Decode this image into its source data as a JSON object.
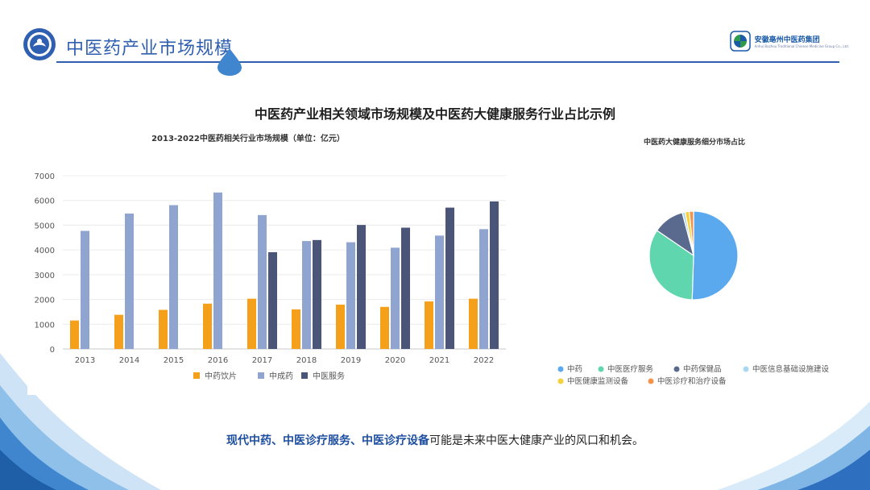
{
  "header": {
    "title": "中医药产业市场规模",
    "brand_name": "安徽亳州中医药集团",
    "brand_sub": "Anhui Bozhou Traditional Chinese Medicine Group Co., Ltd."
  },
  "main_heading": "中医药产业相关领域市场规模及中医药大健康服务行业占比示例",
  "chart_data": [
    {
      "type": "bar",
      "title": "2013-2022中医药相关行业市场规模（单位：亿元）",
      "categories": [
        "2013",
        "2014",
        "2015",
        "2016",
        "2017",
        "2018",
        "2019",
        "2020",
        "2021",
        "2022"
      ],
      "ylim": [
        0,
        7000
      ],
      "yticks": [
        0,
        1000,
        2000,
        3000,
        4000,
        5000,
        6000,
        7000
      ],
      "grid": true,
      "legend_position": "bottom",
      "series": [
        {
          "name": "中药饮片",
          "color": "#f5a01a",
          "values": [
            1150,
            1380,
            1580,
            1830,
            2030,
            1600,
            1790,
            1700,
            1920,
            2030
          ]
        },
        {
          "name": "中成药",
          "color": "#8fa5cf",
          "values": [
            4770,
            5470,
            5810,
            6320,
            5410,
            4360,
            4310,
            4090,
            4580,
            4840
          ]
        },
        {
          "name": "中医服务",
          "color": "#4a5578",
          "values": [
            null,
            null,
            null,
            null,
            3910,
            4400,
            5010,
            4900,
            5710,
            5960
          ]
        }
      ]
    },
    {
      "type": "pie",
      "title": "中医药大健康服务细分市场占比",
      "legend_position": "bottom",
      "slices": [
        {
          "name": "中药",
          "value": 49,
          "color": "#5aa9ef"
        },
        {
          "name": "中医医疗服务",
          "value": 33,
          "color": "#5fd6ad"
        },
        {
          "name": "中药保健品",
          "value": 11,
          "color": "#5a6a8e"
        },
        {
          "name": "中医信息基础设施建设",
          "value": 1,
          "color": "#a9d9f2"
        },
        {
          "name": "中医健康监测设备",
          "value": 1.5,
          "color": "#f5d23a"
        },
        {
          "name": "中医诊疗和治疗设备",
          "value": 1.5,
          "color": "#f5934a"
        }
      ]
    }
  ],
  "bottom": {
    "highlight": "现代中药、中医诊疗服务、中医诊疗设备",
    "rest": "可能是未来中医大健康产业的风口和机会。"
  }
}
